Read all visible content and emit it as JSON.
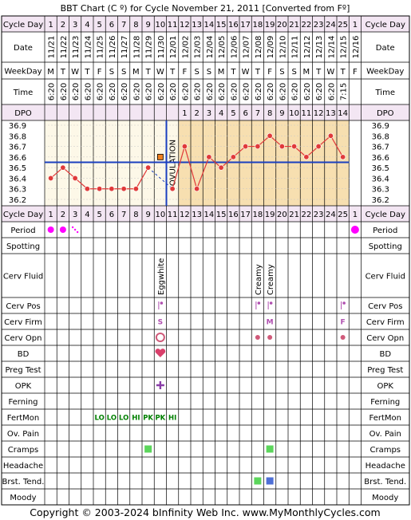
{
  "title": "BBT Chart (C º) for Cycle November 21, 2011  [Converted from Fº]",
  "footer": "Copyright © 2003-2024 bInfinity Web Inc.    www.MyMonthlyCycles.com",
  "row_labels": {
    "cycle_day": "Cycle Day",
    "date": "Date",
    "weekday": "WeekDay",
    "time": "Time",
    "dpo": "DPO",
    "period": "Period",
    "spotting": "Spotting",
    "cerv_fluid": "Cerv Fluid",
    "cerv_pos": "Cerv Pos",
    "cerv_firm": "Cerv Firm",
    "cerv_opn": "Cerv Opn",
    "bd": "BD",
    "preg_test": "Preg Test",
    "opk": "OPK",
    "ferning": "Ferning",
    "fertmon": "FertMon",
    "ov_pain": "Ov. Pain",
    "cramps": "Cramps",
    "headache": "Headache",
    "brst_tend": "Brst. Tend.",
    "moody": "Moody"
  },
  "days": [
    "1",
    "2",
    "3",
    "4",
    "5",
    "6",
    "7",
    "8",
    "9",
    "10",
    "11",
    "12",
    "13",
    "14",
    "15",
    "16",
    "17",
    "18",
    "19",
    "20",
    "21",
    "22",
    "23",
    "24",
    "25",
    "1"
  ],
  "dates": [
    "11/21",
    "11/22",
    "11/23",
    "11/24",
    "11/25",
    "11/26",
    "11/27",
    "11/28",
    "11/29",
    "11/30",
    "12/01",
    "12/02",
    "12/03",
    "12/04",
    "12/05",
    "12/06",
    "12/07",
    "12/08",
    "12/09",
    "12/10",
    "12/11",
    "12/12",
    "12/13",
    "12/14",
    "12/15",
    "12/16"
  ],
  "weekdays": [
    "M",
    "T",
    "W",
    "T",
    "F",
    "S",
    "S",
    "M",
    "T",
    "W",
    "T",
    "F",
    "S",
    "S",
    "M",
    "T",
    "W",
    "T",
    "F",
    "S",
    "S",
    "M",
    "T",
    "W",
    "T",
    "F"
  ],
  "times": [
    "6:20",
    "6:20",
    "6:20",
    "6:20",
    "6:20",
    "6:20",
    "6:20",
    "6:20",
    "6:20",
    "6:20",
    "6:20",
    "6:20",
    "6:20",
    "6:20",
    "6:20",
    "6:20",
    "6:20",
    "6:20",
    "6:20",
    "6:20",
    "6:20",
    "6:20",
    "6:20",
    "6:20",
    "7:15",
    ""
  ],
  "dpo": [
    "",
    "",
    "",
    "",
    "",
    "",
    "",
    "",
    "",
    "",
    "",
    "1",
    "2",
    "3",
    "4",
    "5",
    "6",
    "7",
    "8",
    "9",
    "10",
    "11",
    "12",
    "13",
    "14",
    ""
  ],
  "ovulation_label": "OVULATION",
  "colors": {
    "grid": "#000000",
    "header_bg": "#f3e6f3",
    "chart_bg": "#fdf8e8",
    "luteal_bg": "#f7dfb0",
    "line": "#e03a3a",
    "coverline": "#1a3fbf",
    "period": "#ff00ff",
    "fertile": "#008000",
    "symptom": "#5cd65c",
    "symptom_blue": "#4e6fd6",
    "cervix": "#b04fb0",
    "bd": "#d9406b"
  },
  "chart_data": {
    "type": "line",
    "title": "BBT Chart (C º) for Cycle November 21, 2011  [Converted from Fº]",
    "x": [
      "1",
      "2",
      "3",
      "4",
      "5",
      "6",
      "7",
      "8",
      "9",
      "10",
      "11",
      "12",
      "13",
      "14",
      "15",
      "16",
      "17",
      "18",
      "19",
      "20",
      "21",
      "22",
      "23",
      "24",
      "25"
    ],
    "y": [
      36.4,
      36.5,
      36.4,
      36.3,
      36.3,
      36.3,
      36.3,
      36.3,
      36.5,
      null,
      36.3,
      36.7,
      36.3,
      36.6,
      36.5,
      36.6,
      36.7,
      36.7,
      36.8,
      36.7,
      36.7,
      36.6,
      36.7,
      36.8,
      36.6
    ],
    "discarded": [
      {
        "day": "10",
        "value": 36.6
      }
    ],
    "yticks": [
      "36.9",
      "36.8",
      "36.7",
      "36.6",
      "36.5",
      "36.4",
      "36.3",
      "36.2"
    ],
    "ylim": [
      36.2,
      36.9
    ],
    "coverline": 36.55,
    "ovulation_day": "11"
  },
  "observations": {
    "period": [
      {
        "day_index": 0,
        "type": "dot"
      },
      {
        "day_index": 1,
        "type": "dot"
      },
      {
        "day_index": 2,
        "type": "spotting_dots"
      },
      {
        "day_index": 25,
        "type": "dot"
      }
    ],
    "cerv_fluid": [
      {
        "day_index": 9,
        "text": "Eggwhite"
      },
      {
        "day_index": 17,
        "text": "Creamy"
      },
      {
        "day_index": 18,
        "text": "Creamy"
      }
    ],
    "cerv_pos": [
      {
        "day_index": 9
      },
      {
        "day_index": 17
      },
      {
        "day_index": 18
      },
      {
        "day_index": 24
      }
    ],
    "cerv_firm": [
      {
        "day_index": 9,
        "text": "S"
      },
      {
        "day_index": 18,
        "text": "M"
      },
      {
        "day_index": 24,
        "text": "F"
      }
    ],
    "cerv_opn": [
      {
        "day_index": 9,
        "type": "open"
      },
      {
        "day_index": 17,
        "type": "closed"
      },
      {
        "day_index": 18,
        "type": "closed"
      },
      {
        "day_index": 24,
        "type": "closed"
      }
    ],
    "bd": [
      {
        "day_index": 9
      }
    ],
    "opk": [
      {
        "day_index": 9
      }
    ],
    "fertmon": [
      {
        "day_index": 4,
        "text": "LO"
      },
      {
        "day_index": 5,
        "text": "LO"
      },
      {
        "day_index": 6,
        "text": "LO"
      },
      {
        "day_index": 7,
        "text": "HI"
      },
      {
        "day_index": 8,
        "text": "PK"
      },
      {
        "day_index": 9,
        "text": "PK"
      },
      {
        "day_index": 10,
        "text": "HI"
      }
    ],
    "cramps": [
      {
        "day_index": 8,
        "color": "green"
      },
      {
        "day_index": 18,
        "color": "green"
      }
    ],
    "brst_tend": [
      {
        "day_index": 17,
        "color": "green"
      },
      {
        "day_index": 18,
        "color": "blue"
      }
    ]
  }
}
